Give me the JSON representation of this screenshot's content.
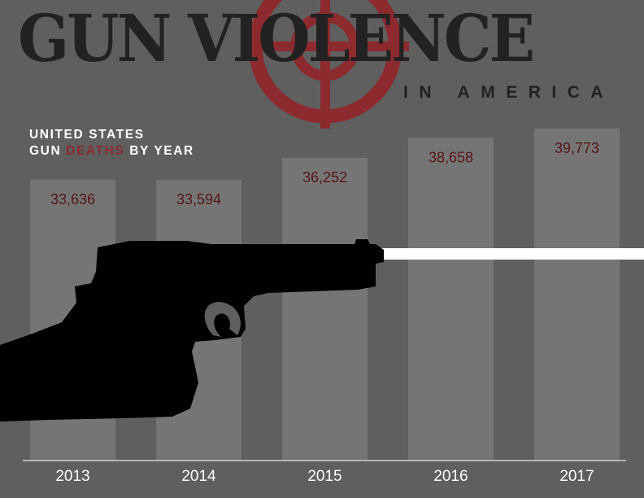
{
  "title": {
    "main": "GUN VIOLENCE",
    "subtitle": "IN AMERICA"
  },
  "chart_heading": {
    "line1": "UNITED STATES",
    "line2_before": "GUN ",
    "line2_highlight": "DEATHS",
    "line2_after": " BY YEAR"
  },
  "colors": {
    "background": "#5f5f5f",
    "bar": "#757575",
    "value_label": "#5a1416",
    "crosshair": "#8c2a2e",
    "title": "#222222",
    "highlight": "#8c2a2e"
  },
  "chart_data": {
    "type": "bar",
    "categories": [
      "2013",
      "2014",
      "2015",
      "2016",
      "2017"
    ],
    "values": [
      33636,
      33594,
      36252,
      38658,
      39773
    ],
    "value_labels": [
      "33,636",
      "33,594",
      "36,252",
      "38,658",
      "39,773"
    ],
    "title": "UNITED STATES GUN DEATHS BY YEAR",
    "xlabel": "",
    "ylabel": "",
    "grid": false,
    "legend": "none"
  },
  "decorations": {
    "crosshair_icon": "crosshair-icon",
    "pistol_icon": "pistol-icon",
    "bullet_trail": "bullet-trail"
  }
}
